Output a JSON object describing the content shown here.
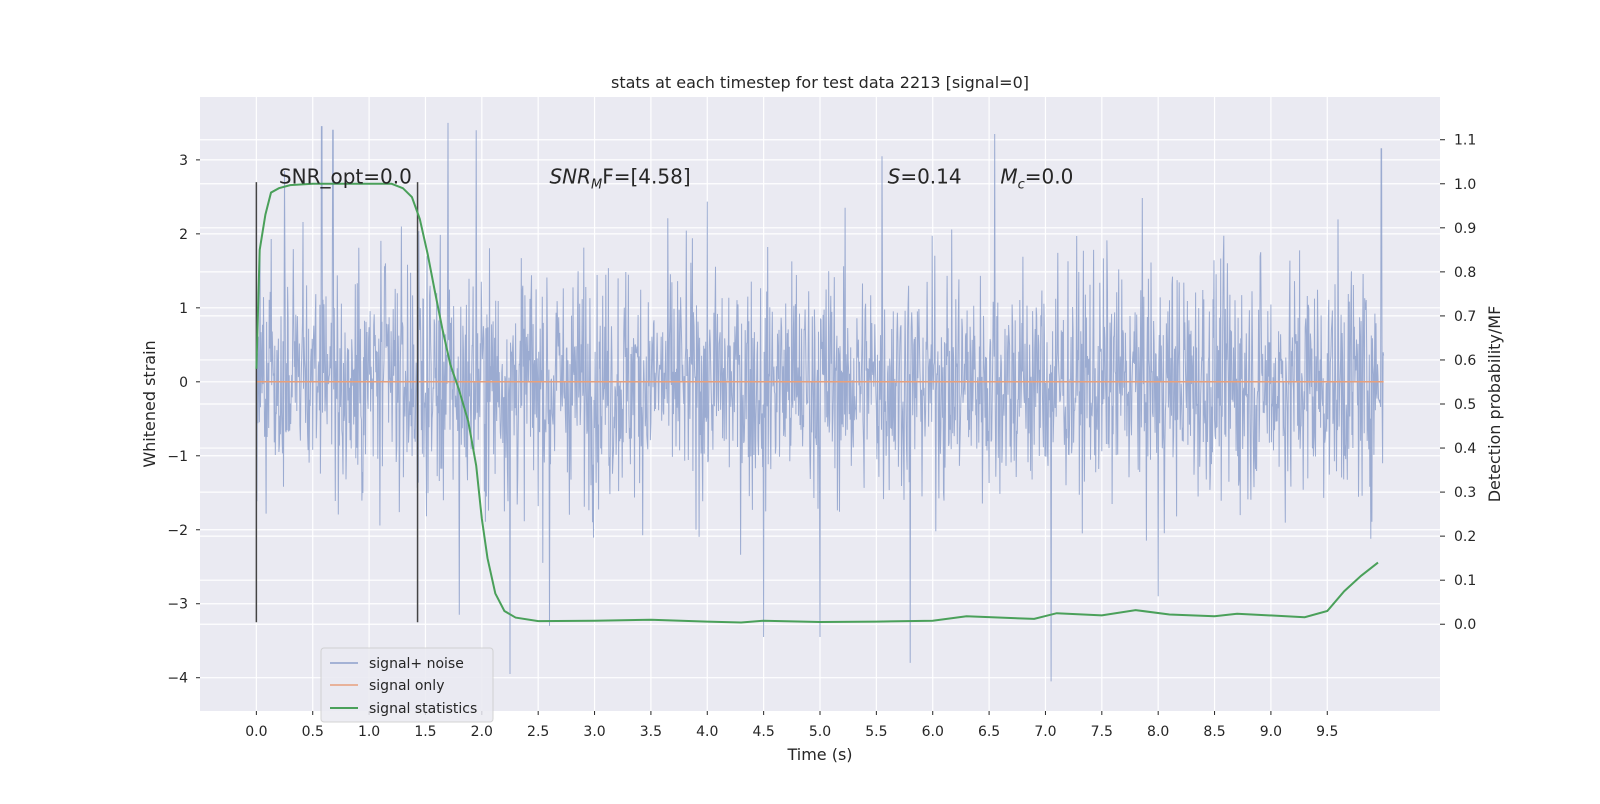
{
  "chart_data": {
    "type": "line",
    "title": "stats at each timestep for test data 2213 [signal=0]",
    "xlabel": "Time (s)",
    "ylabel": "Whitened strain",
    "y2label": "Detection probability/MF",
    "xlim": [
      -0.5,
      10.5
    ],
    "ylim": [
      -4.45,
      3.85
    ],
    "y2lim": [
      -0.197,
      1.197
    ],
    "x_ticks": [
      0.0,
      0.5,
      1.0,
      1.5,
      2.0,
      2.5,
      3.0,
      3.5,
      4.0,
      4.5,
      5.0,
      5.5,
      6.0,
      6.5,
      7.0,
      7.5,
      8.0,
      8.5,
      9.0,
      9.5
    ],
    "x_tick_labels": [
      "0.0",
      "0.5",
      "1.0",
      "1.5",
      "2.0",
      "2.5",
      "3.0",
      "3.5",
      "4.0",
      "4.5",
      "5.0",
      "5.5",
      "6.0",
      "6.5",
      "7.0",
      "7.5",
      "8.0",
      "8.5",
      "9.0",
      "9.5"
    ],
    "y_ticks": [
      3,
      2,
      1,
      0,
      -1,
      -2,
      -3,
      -4
    ],
    "y_tick_labels": [
      "3",
      "2",
      "1",
      "0",
      "−1",
      "−2",
      "−3",
      "−4"
    ],
    "y2_ticks": [
      1.1,
      1.0,
      0.9,
      0.8,
      0.7,
      0.6,
      0.5,
      0.4,
      0.3,
      0.2,
      0.1,
      0.0
    ],
    "y2_tick_labels": [
      "1.1",
      "1.0",
      "0.9",
      "0.8",
      "0.7",
      "0.6",
      "0.5",
      "0.4",
      "0.3",
      "0.2",
      "0.1",
      "0.0"
    ],
    "grid": true,
    "legend_position": "lower-left",
    "series": [
      {
        "name": "signal+ noise",
        "color": "#8da0cb",
        "axis": "left",
        "x_range": [
          0.0,
          10.0
        ],
        "envelope": "dense noise, values mostly within ±2, extremes ~3.5 and ~−4.0",
        "peaks": [
          {
            "x": 0.25,
            "y": 2.85
          },
          {
            "x": 0.58,
            "y": 3.45
          },
          {
            "x": 0.68,
            "y": 3.4
          },
          {
            "x": 1.7,
            "y": 3.5
          },
          {
            "x": 1.95,
            "y": 3.4
          },
          {
            "x": 2.25,
            "y": 3.4
          },
          {
            "x": 5.55,
            "y": 3.05
          },
          {
            "x": 6.55,
            "y": 3.35
          },
          {
            "x": 9.98,
            "y": 3.15
          },
          {
            "x": 1.8,
            "y": -3.15
          },
          {
            "x": 2.25,
            "y": -3.95
          },
          {
            "x": 2.6,
            "y": -3.3
          },
          {
            "x": 4.5,
            "y": -3.45
          },
          {
            "x": 5.0,
            "y": -3.45
          },
          {
            "x": 5.8,
            "y": -3.8
          },
          {
            "x": 7.05,
            "y": -4.05
          },
          {
            "x": 8.0,
            "y": -2.9
          }
        ]
      },
      {
        "name": "signal only",
        "color": "#e8a07c",
        "axis": "left",
        "x": [
          0.0,
          10.0
        ],
        "y": [
          0.0,
          0.0
        ]
      },
      {
        "name": "signal statistics",
        "color": "#4aa05a",
        "axis": "right",
        "x": [
          0.0,
          0.03,
          0.08,
          0.13,
          0.2,
          0.3,
          0.5,
          1.0,
          1.2,
          1.3,
          1.38,
          1.45,
          1.52,
          1.58,
          1.65,
          1.72,
          1.8,
          1.88,
          1.95,
          2.0,
          2.05,
          2.12,
          2.2,
          2.3,
          2.5,
          3.0,
          3.5,
          4.0,
          4.3,
          4.5,
          5.0,
          5.5,
          6.0,
          6.3,
          6.9,
          7.1,
          7.5,
          7.8,
          8.1,
          8.5,
          8.7,
          9.3,
          9.5,
          9.65,
          9.8,
          9.95
        ],
        "y": [
          0.58,
          0.85,
          0.93,
          0.98,
          0.99,
          0.997,
          1.0,
          1.0,
          1.0,
          0.99,
          0.97,
          0.92,
          0.84,
          0.76,
          0.67,
          0.59,
          0.53,
          0.46,
          0.36,
          0.24,
          0.15,
          0.07,
          0.03,
          0.015,
          0.007,
          0.008,
          0.01,
          0.006,
          0.004,
          0.008,
          0.005,
          0.006,
          0.008,
          0.018,
          0.012,
          0.025,
          0.02,
          0.032,
          0.022,
          0.018,
          0.024,
          0.016,
          0.03,
          0.075,
          0.11,
          0.14
        ]
      }
    ],
    "vlines": [
      {
        "x": 0.0,
        "ymin": -3.25,
        "ymax": 2.7,
        "color": "#444444"
      },
      {
        "x": 1.43,
        "ymin": -3.25,
        "ymax": 2.7,
        "color": "#444444"
      }
    ],
    "annotations": [
      {
        "text": "SNR_opt=0.0",
        "x": 0.2,
        "y": 2.68
      },
      {
        "text_base": "SNR",
        "text_sub": "M",
        "text_rest": "F=[4.58]",
        "x": 2.6,
        "y": 2.68
      },
      {
        "text_base": "S",
        "text_rest": "=0.14",
        "x": 5.6,
        "y": 2.68
      },
      {
        "text_base": "M",
        "text_sub": "c",
        "text_rest": "=0.0",
        "x": 6.6,
        "y": 2.68
      }
    ]
  }
}
